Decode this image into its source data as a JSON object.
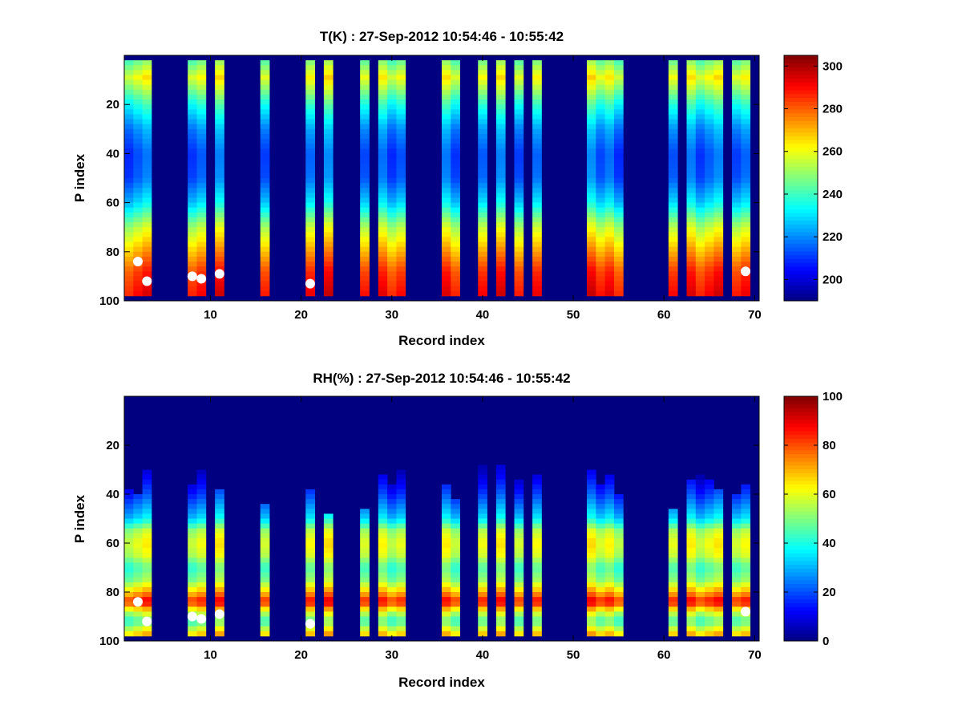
{
  "chart_data": [
    {
      "type": "heatmap",
      "title": "T(K) : 27-Sep-2012 10:54:46 - 10:55:42",
      "xlabel": "Record index",
      "ylabel": "P index",
      "xlim": [
        1,
        70
      ],
      "ylim": [
        0,
        100
      ],
      "y_reversed": true,
      "xticks": [
        10,
        20,
        30,
        40,
        50,
        60,
        70
      ],
      "yticks": [
        20,
        40,
        60,
        80,
        100
      ],
      "colorbar": {
        "range": [
          190,
          305
        ],
        "ticks": [
          200,
          220,
          240,
          260,
          280,
          300
        ]
      },
      "background_value": 190,
      "record_columns": [
        1,
        2,
        3,
        8,
        9,
        11,
        16,
        21,
        23,
        27,
        29,
        30,
        31,
        36,
        37,
        40,
        42,
        44,
        46,
        52,
        53,
        54,
        55,
        61,
        63,
        64,
        65,
        66,
        68,
        69
      ],
      "column_valid_from_p": [
        2,
        2,
        2,
        2,
        2,
        2,
        2,
        2,
        2,
        2,
        2,
        2,
        2,
        2,
        2,
        2,
        2,
        2,
        2,
        2,
        2,
        2,
        2,
        2,
        2,
        2,
        2,
        2,
        2,
        2
      ],
      "profile_p": [
        2,
        9,
        20,
        30,
        40,
        50,
        60,
        70,
        80,
        88,
        98
      ],
      "profile_values": [
        245,
        262,
        238,
        222,
        214,
        216,
        230,
        255,
        272,
        285,
        292
      ],
      "markers": [
        [
          2,
          84
        ],
        [
          3,
          92
        ],
        [
          8,
          90
        ],
        [
          9,
          91
        ],
        [
          11,
          89
        ],
        [
          21,
          93
        ],
        [
          69,
          88
        ]
      ]
    },
    {
      "type": "heatmap",
      "title": "RH(%) : 27-Sep-2012 10:54:46 - 10:55:42",
      "xlabel": "Record index",
      "ylabel": "P index",
      "xlim": [
        1,
        70
      ],
      "ylim": [
        0,
        100
      ],
      "y_reversed": true,
      "xticks": [
        10,
        20,
        30,
        40,
        50,
        60,
        70
      ],
      "yticks": [
        20,
        40,
        60,
        80,
        100
      ],
      "colorbar": {
        "range": [
          0,
          100
        ],
        "ticks": [
          0,
          20,
          40,
          60,
          80,
          100
        ]
      },
      "background_value": 0,
      "record_columns": [
        1,
        2,
        3,
        8,
        9,
        11,
        16,
        21,
        23,
        27,
        29,
        30,
        31,
        36,
        37,
        40,
        42,
        44,
        46,
        52,
        53,
        54,
        55,
        61,
        63,
        64,
        65,
        66,
        68,
        69
      ],
      "column_valid_from_p": [
        38,
        40,
        30,
        36,
        30,
        38,
        44,
        38,
        48,
        46,
        32,
        36,
        30,
        36,
        42,
        28,
        28,
        34,
        32,
        30,
        36,
        32,
        40,
        46,
        34,
        32,
        34,
        38,
        40,
        36
      ],
      "profile_p": [
        30,
        40,
        50,
        55,
        60,
        65,
        70,
        75,
        80,
        84,
        88,
        92,
        98
      ],
      "profile_values": [
        5,
        18,
        35,
        55,
        62,
        58,
        45,
        52,
        70,
        88,
        60,
        45,
        72
      ],
      "markers": [
        [
          2,
          84
        ],
        [
          3,
          92
        ],
        [
          8,
          90
        ],
        [
          9,
          91
        ],
        [
          11,
          89
        ],
        [
          21,
          93
        ],
        [
          69,
          88
        ]
      ]
    }
  ]
}
